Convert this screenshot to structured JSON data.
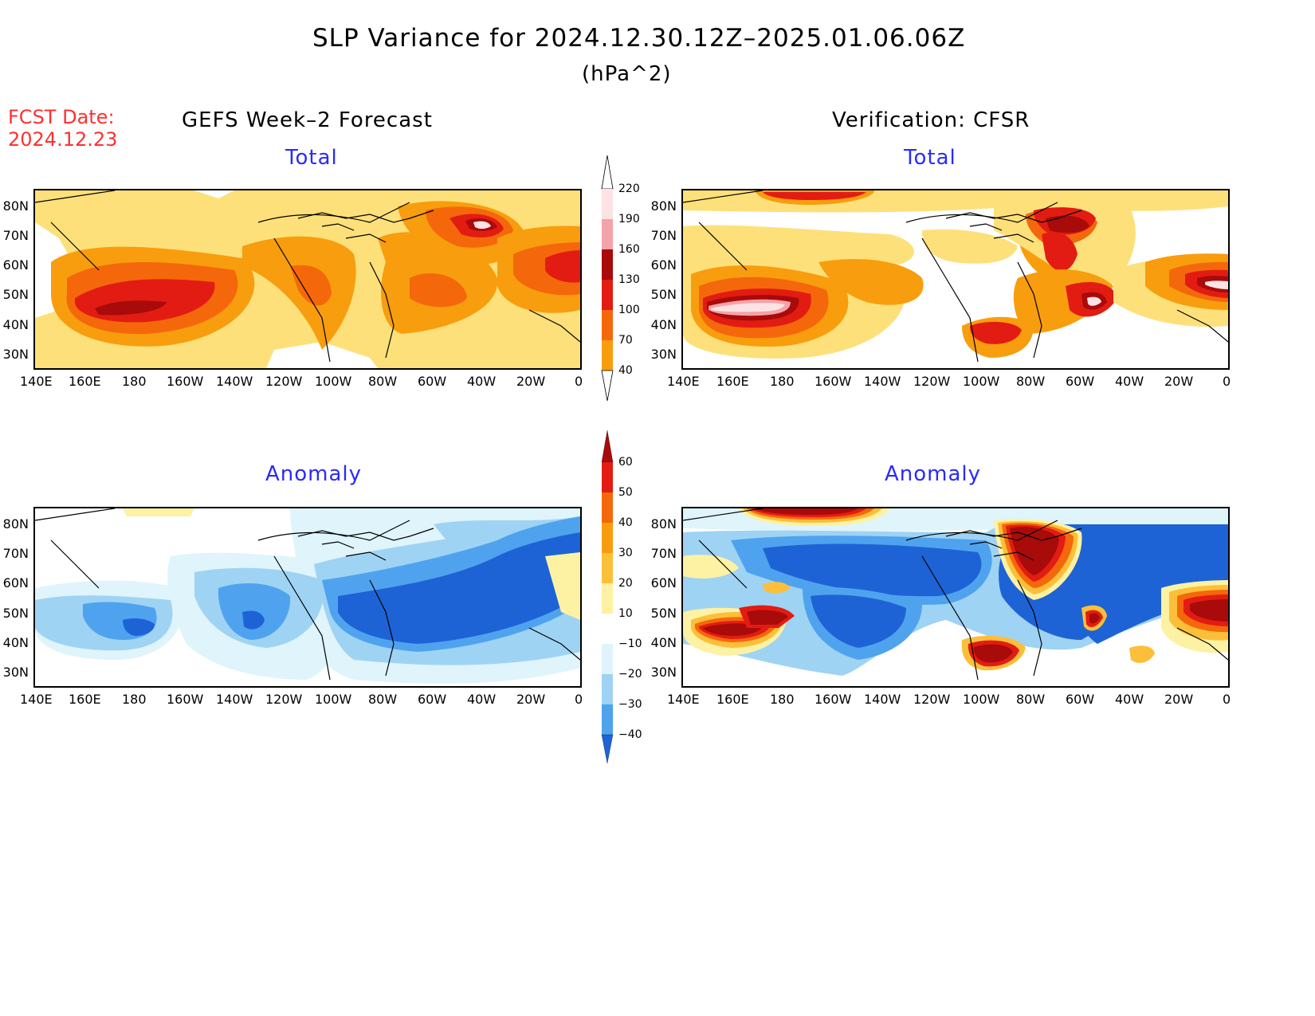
{
  "title": "SLP Variance for 2024.12.30.12Z–2025.01.06.06Z",
  "subtitle": "(hPa^2)",
  "fcst_date": {
    "label": "FCST Date:",
    "value": "2024.12.23"
  },
  "columns": {
    "left": "GEFS Week–2 Forecast",
    "right": "Verification: CFSR"
  },
  "panels": [
    {
      "id": "fc-total",
      "label": "Total"
    },
    {
      "id": "ver-total",
      "label": "Total"
    },
    {
      "id": "fc-anom",
      "label": "Anomaly"
    },
    {
      "id": "ver-anom",
      "label": "Anomaly"
    }
  ],
  "axes": {
    "x_ticks": [
      "140E",
      "160E",
      "180",
      "160W",
      "140W",
      "120W",
      "100W",
      "80W",
      "60W",
      "40W",
      "20W",
      "0"
    ],
    "y_ticks": [
      "80N",
      "70N",
      "60N",
      "50N",
      "40N",
      "30N"
    ]
  },
  "colorbars": {
    "total": {
      "levels": [
        "220",
        "190",
        "160",
        "130",
        "100",
        "70",
        "40"
      ],
      "colors": [
        "#fde2e4",
        "#f4a3a8",
        "#a90a0a",
        "#e21c13",
        "#f4680b",
        "#f89d0e",
        "#fde07a"
      ]
    },
    "anomaly": {
      "levels": [
        "60",
        "50",
        "40",
        "30",
        "20",
        "10",
        "−10",
        "−20",
        "−30",
        "−40"
      ],
      "colors": [
        "#a90a0a",
        "#e21c13",
        "#f4680b",
        "#f89d0e",
        "#fbbf3a",
        "#fdf2a4",
        "#ffffff",
        "#dff4fb",
        "#9fd3f4",
        "#4fa3ee",
        "#1e63d6"
      ]
    }
  }
}
